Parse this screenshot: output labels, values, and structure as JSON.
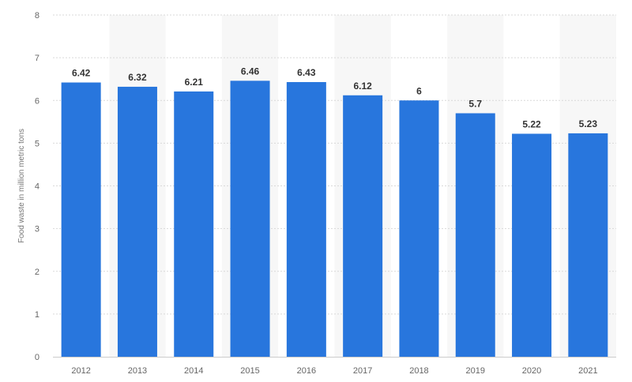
{
  "chart_data": {
    "type": "bar",
    "categories": [
      "2012",
      "2013",
      "2014",
      "2015",
      "2016",
      "2017",
      "2018",
      "2019",
      "2020",
      "2021"
    ],
    "values": [
      6.42,
      6.32,
      6.21,
      6.46,
      6.43,
      6.12,
      6,
      5.7,
      5.22,
      5.23
    ],
    "value_labels": [
      "6.42",
      "6.32",
      "6.21",
      "6.46",
      "6.43",
      "6.12",
      "6",
      "5.7",
      "5.22",
      "5.23"
    ],
    "ylabel": "Food waste in million metric tons",
    "xlabel": "",
    "title": "",
    "ylim": [
      0,
      8
    ],
    "yticks": [
      "0",
      "1",
      "2",
      "3",
      "4",
      "5",
      "6",
      "7",
      "8"
    ],
    "grid": true,
    "legend": "none",
    "bar_color": "#2876DD",
    "alternate_band_color": "#F7F7F7"
  }
}
